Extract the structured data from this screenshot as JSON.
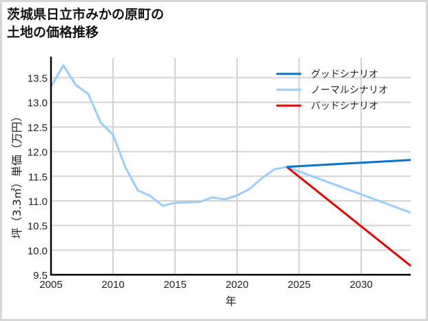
{
  "title_line1": "茨城県日立市みかの原町の",
  "title_line2": "土地の価格推移",
  "chart_data": {
    "type": "line",
    "title": "茨城県日立市みかの原町の土地の価格推移",
    "xlabel": "年",
    "ylabel": "坪（3.3㎡）単価（万円）",
    "xlim": [
      2005,
      2034
    ],
    "ylim": [
      9.5,
      13.9
    ],
    "xticks": [
      2005,
      2010,
      2015,
      2020,
      2025,
      2030
    ],
    "yticks": [
      "9.5",
      "10.0",
      "10.5",
      "11.0",
      "11.5",
      "12.0",
      "12.5",
      "13.0",
      "13.5"
    ],
    "grid": true,
    "legend_position": "upper right",
    "series": [
      {
        "name": "グッドシナリオ",
        "color": "#0a72c8",
        "x": [
          2024,
          2034
        ],
        "y": [
          11.69,
          11.83
        ]
      },
      {
        "name": "ノーマルシナリオ",
        "color": "#99ccff",
        "x": [
          2005,
          2006,
          2007,
          2008,
          2009,
          2010,
          2011,
          2012,
          2013,
          2014,
          2015,
          2016,
          2017,
          2018,
          2019,
          2020,
          2021,
          2022,
          2023,
          2024,
          2034
        ],
        "y": [
          13.32,
          13.75,
          13.35,
          13.17,
          12.59,
          12.34,
          11.68,
          11.21,
          11.1,
          10.9,
          10.96,
          10.97,
          10.98,
          11.07,
          11.03,
          11.11,
          11.24,
          11.46,
          11.64,
          11.69,
          10.76
        ]
      },
      {
        "name": "バッドシナリオ",
        "color": "#ee0000",
        "x": [
          2024,
          2034
        ],
        "y": [
          11.69,
          9.68
        ]
      }
    ]
  }
}
